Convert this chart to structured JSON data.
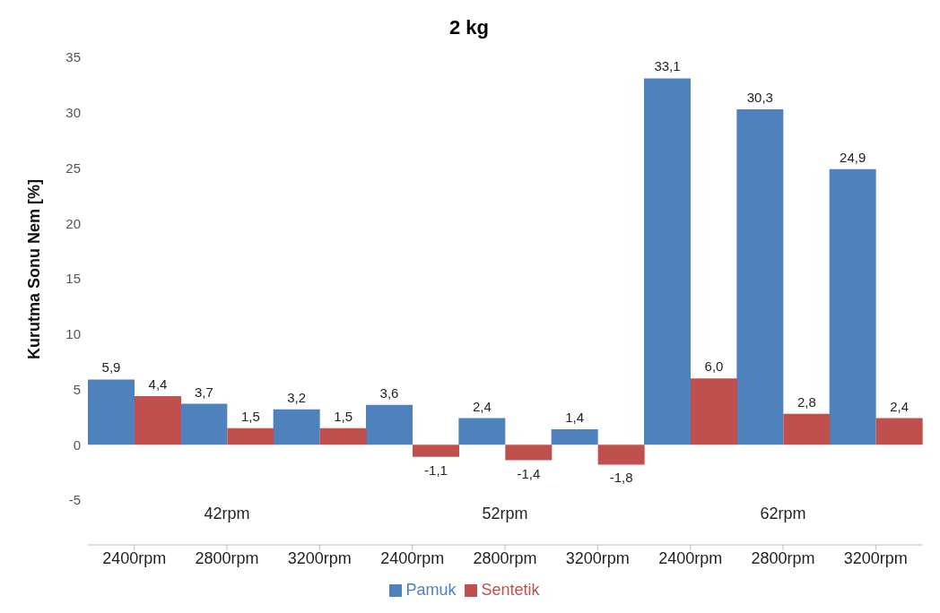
{
  "chart_data": {
    "type": "bar",
    "title": "2 kg",
    "ylabel": "Kurutma Sonu Nem [%]",
    "categories": [
      "2400rpm",
      "2800rpm",
      "3200rpm",
      "2400rpm",
      "2800rpm",
      "3200rpm",
      "2400rpm",
      "2800rpm",
      "3200rpm"
    ],
    "annotations": [
      "42rpm",
      "52rpm",
      "62rpm"
    ],
    "series": [
      {
        "name": "Pamuk",
        "color": "#4f81bd",
        "values": [
          5.9,
          3.7,
          3.2,
          3.6,
          2.4,
          1.4,
          33.1,
          30.3,
          24.9
        ],
        "value_labels": [
          "5,9",
          "3,7",
          "3,2",
          "3,6",
          "2,4",
          "1,4",
          "33,1",
          "30,3",
          "24,9"
        ]
      },
      {
        "name": "Sentetik",
        "color": "#c0504d",
        "values": [
          4.4,
          1.5,
          1.5,
          -1.1,
          -1.4,
          -1.8,
          6.0,
          2.8,
          2.4
        ],
        "value_labels": [
          "4,4",
          "1,5",
          "1,5",
          "-1,1",
          "-1,4",
          "-1,8",
          "6,0",
          "2,8",
          "2,4"
        ]
      }
    ],
    "ylim": [
      -5,
      35
    ],
    "yticks": [
      -5,
      0,
      5,
      10,
      15,
      20,
      25,
      30,
      35
    ],
    "legend": "bottom"
  }
}
